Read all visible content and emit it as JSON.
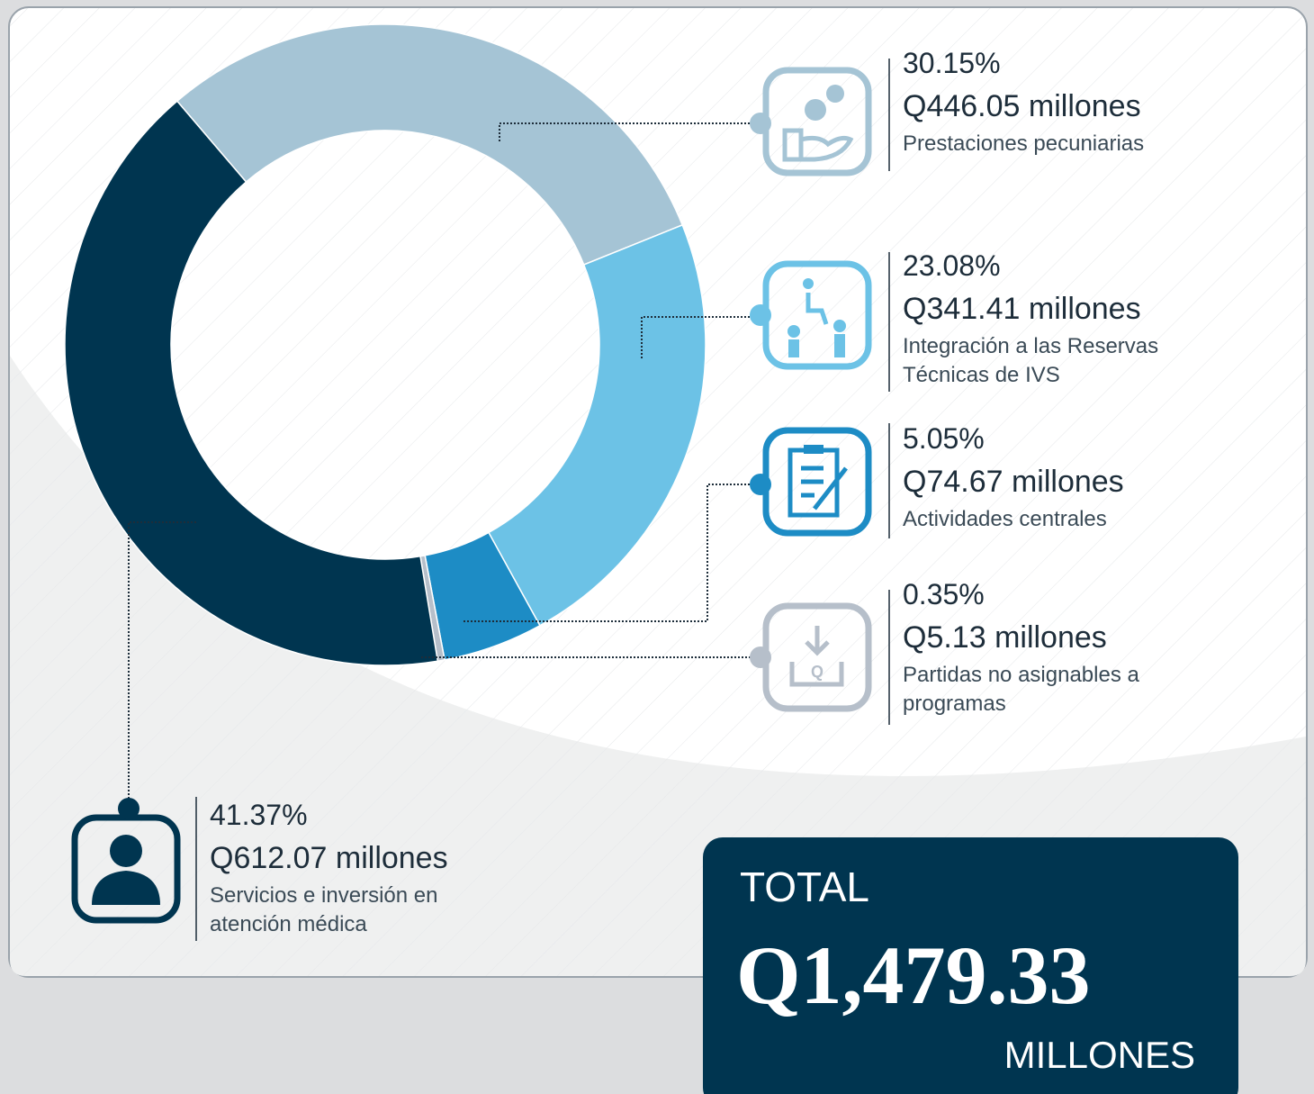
{
  "chart_data": {
    "type": "donut",
    "categories": [
      "Prestaciones pecuniarias",
      "Integración a las Reservas Técnicas de IVS",
      "Actividades centrales",
      "Partidas no asignables a programas",
      "Servicios e inversión en atención médica"
    ],
    "values": [
      30.15,
      23.08,
      5.05,
      0.35,
      41.37
    ],
    "value_labels": [
      "30.15%",
      "23.08%",
      "5.05%",
      "0.35%",
      "41.37%"
    ],
    "amount_labels": [
      "Q446.05 millones",
      "Q341.41 millones",
      "Q74.67 millones",
      "Q5.13 millones",
      "Q612.07 millones"
    ],
    "colors": [
      "#a5c4d5",
      "#6cc2e6",
      "#1d8cc5",
      "#b6bfca",
      "#003550"
    ],
    "total": {
      "label": "TOTAL",
      "value": "Q1,479.33",
      "unit": "MILLONES"
    }
  }
}
